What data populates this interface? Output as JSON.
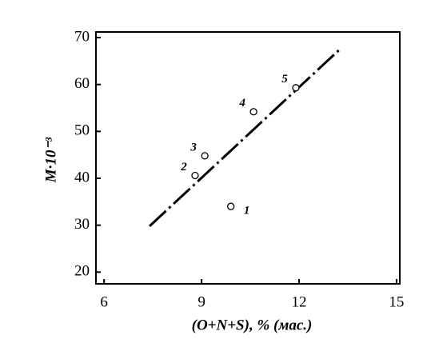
{
  "chart_data": {
    "type": "scatter",
    "x_label": "(O+N+S), % (мас.)",
    "y_label": "M·10⁻³",
    "x": [
      9.9,
      8.8,
      9.1,
      10.6,
      11.9
    ],
    "values": [
      34,
      40.6,
      44.8,
      54.2,
      59.3
    ],
    "point_labels": [
      "1",
      "2",
      "3",
      "4",
      "5"
    ],
    "fit_line": {
      "x": [
        7.4,
        13.3
      ],
      "y": [
        29.8,
        67.8
      ]
    },
    "color": "#000000",
    "xlim": [
      5.75,
      15.1
    ],
    "xticks": [
      6,
      9,
      12,
      15
    ],
    "ylim": [
      17.5,
      71.2
    ],
    "yticks": [
      20,
      30,
      40,
      50,
      60,
      70
    ]
  }
}
